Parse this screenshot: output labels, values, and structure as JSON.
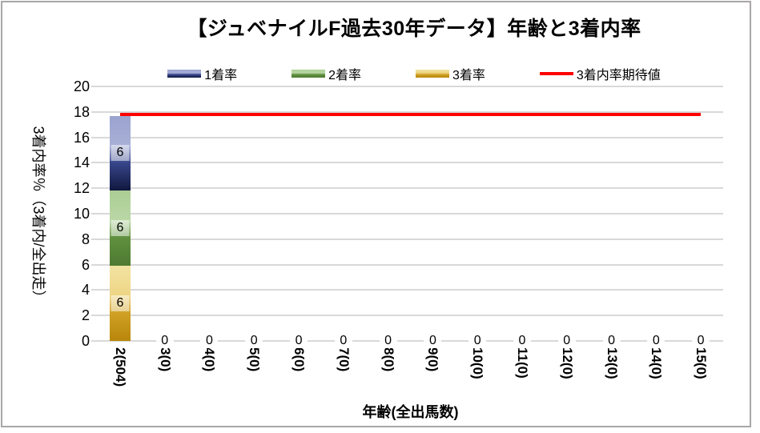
{
  "chart_data": {
    "type": "bar",
    "stacked": true,
    "title": "【ジュベナイルF過去30年データ】年齢と3着内率",
    "xlabel": "年齢(全出馬数)",
    "ylabel": "3着内率％（3着内/全出走）",
    "ylim": [
      0,
      20
    ],
    "ytick_step": 2,
    "grid": true,
    "legend_position": "top",
    "categories": [
      "2(504)",
      "3(0)",
      "4(0)",
      "5(0)",
      "6(0)",
      "7(0)",
      "8(0)",
      "9(0)",
      "10(0)",
      "11(0)",
      "12(0)",
      "13(0)",
      "14(0)",
      "15(0)"
    ],
    "series": [
      {
        "name": "1着率",
        "gradient": [
          "#9ba4ce",
          "#a8afd7",
          "#39478c",
          "#10173f"
        ],
        "values": [
          5.9,
          0,
          0,
          0,
          0,
          0,
          0,
          0,
          0,
          0,
          0,
          0,
          0,
          0
        ],
        "data_label_first": "6"
      },
      {
        "name": "2着率",
        "gradient": [
          "#abce94",
          "#bad7a6",
          "#61913f",
          "#4d7a31"
        ],
        "values": [
          5.9,
          0,
          0,
          0,
          0,
          0,
          0,
          0,
          0,
          0,
          0,
          0,
          0,
          0
        ],
        "data_label_first": "6"
      },
      {
        "name": "3着率",
        "gradient": [
          "#f2e3a2",
          "#eed584",
          "#cfa125",
          "#b8860b"
        ],
        "values": [
          5.9,
          0,
          0,
          0,
          0,
          0,
          0,
          0,
          0,
          0,
          0,
          0,
          0,
          0
        ],
        "data_label_first": "6"
      }
    ],
    "expected_line": {
      "name": "3着内率期待値",
      "color": "#ff0000",
      "value": 17.8
    },
    "zero_data_label": "0",
    "colors": {
      "grid": "#d9d9d9",
      "border": "#a9a6a7",
      "text": "#000000",
      "background": "#ffffff"
    }
  }
}
